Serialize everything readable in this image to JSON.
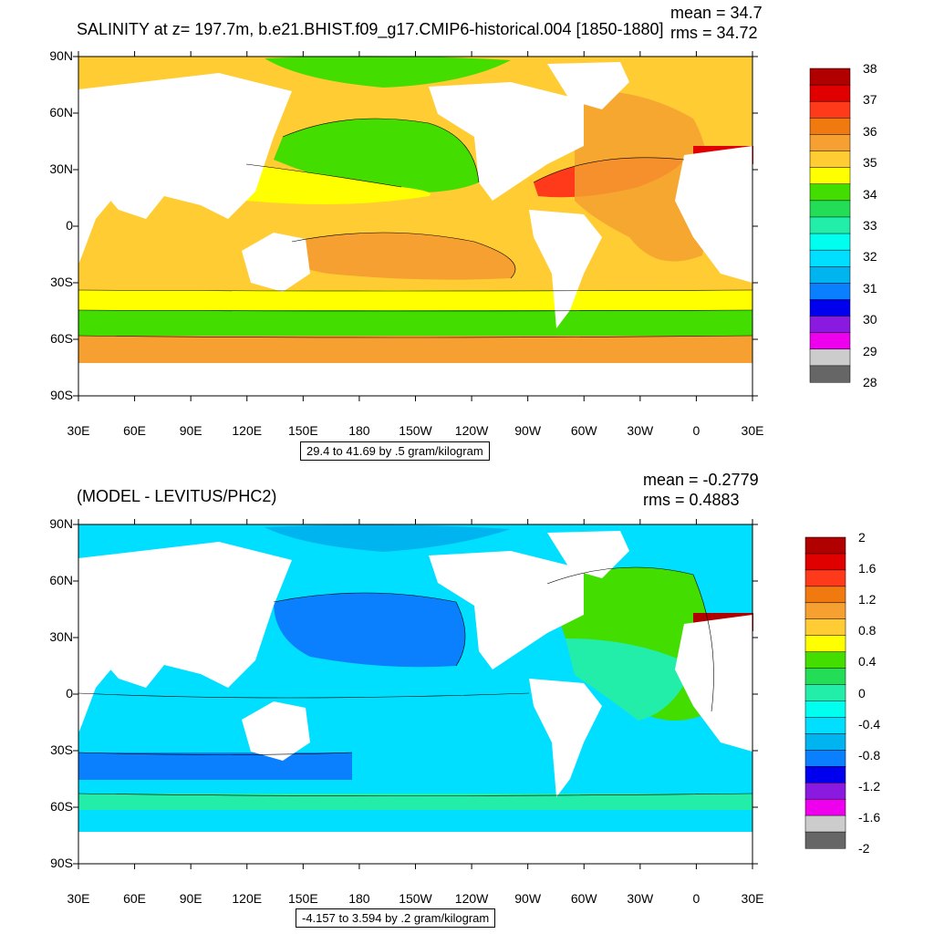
{
  "top_panel": {
    "title": "SALINITY at z= 197.7m, b.e21.BHIST.f09_g17.CMIP6-historical.004 [1850-1880]",
    "mean": "mean = 34.7",
    "rms": "rms = 34.72",
    "contour_note": "29.4 to 41.69 by .5 gram/kilogram",
    "colorbar_labels": [
      "38",
      "37",
      "36",
      "35",
      "34",
      "33",
      "32",
      "31",
      "30",
      "29",
      "28"
    ],
    "colorbar_colors": [
      "#b00000",
      "#e00000",
      "#ff3a1a",
      "#f07a10",
      "#f5a030",
      "#ffcc33",
      "#ffff00",
      "#44dd00",
      "#22dd55",
      "#22eeaa",
      "#00ffee",
      "#00dfff",
      "#00b4f0",
      "#0a80ff",
      "#0000ee",
      "#8a1ae0",
      "#ee00ee",
      "#cccccc",
      "#666666"
    ]
  },
  "bottom_panel": {
    "title": "(MODEL - LEVITUS/PHC2)",
    "mean": "mean = -0.2779",
    "rms": "rms = 0.4883",
    "contour_note": "-4.157 to 3.594 by .2 gram/kilogram",
    "colorbar_labels": [
      "2",
      "1.6",
      "1.2",
      "0.8",
      "0.4",
      "0",
      "-0.4",
      "-0.8",
      "-1.2",
      "-1.6",
      "-2"
    ],
    "colorbar_colors": [
      "#b00000",
      "#e00000",
      "#ff3a1a",
      "#f07a10",
      "#f5a030",
      "#ffcc33",
      "#ffff00",
      "#44dd00",
      "#22dd55",
      "#22eeaa",
      "#00ffee",
      "#00dfff",
      "#00b4f0",
      "#0a80ff",
      "#0000ee",
      "#8a1ae0",
      "#ee00ee",
      "#cccccc",
      "#666666"
    ]
  },
  "axes": {
    "lat_labels": [
      "90N",
      "60N",
      "30N",
      "0",
      "30S",
      "60S",
      "90S"
    ],
    "lon_labels": [
      "30E",
      "60E",
      "90E",
      "120E",
      "150E",
      "180",
      "150W",
      "120W",
      "90W",
      "60W",
      "30W",
      "0",
      "30E"
    ]
  },
  "colors": {
    "salinity_bg": "#ffcc33",
    "salinity_orange": "#f5a030",
    "salinity_green": "#44dd00",
    "salinity_yellow": "#ffff00",
    "salinity_red": "#ff3a1a",
    "diff_bg": "#00dfff",
    "diff_blue": "#0a80ff",
    "diff_green": "#44dd00",
    "diff_light": "#22eeaa",
    "land": "#ffffff"
  }
}
